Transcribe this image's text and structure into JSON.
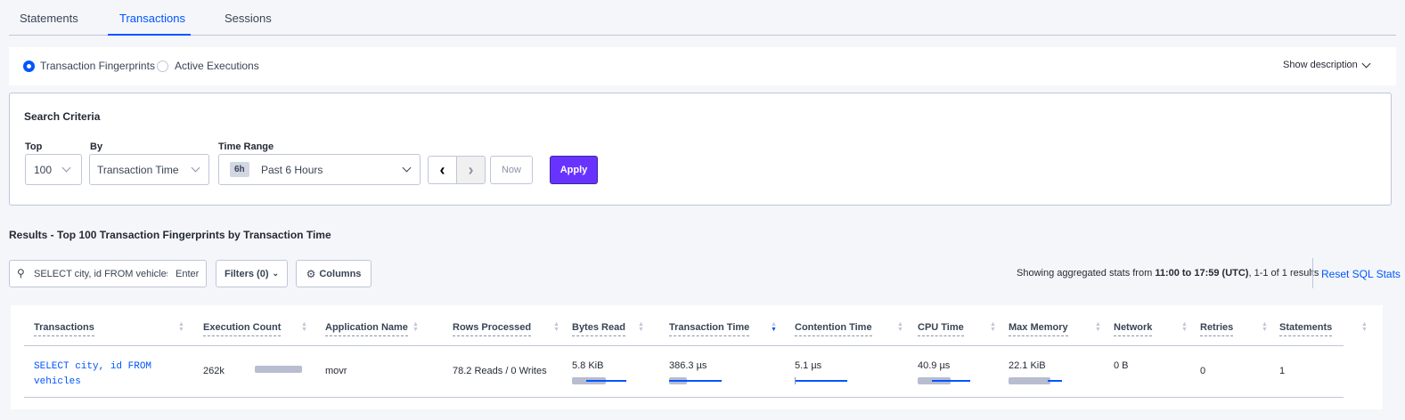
{
  "tabs": [
    {
      "label": "Statements"
    },
    {
      "label": "Transactions",
      "active": true
    },
    {
      "label": "Sessions"
    }
  ],
  "view_toggle": {
    "options": [
      "Transaction Fingerprints",
      "Active Executions"
    ],
    "selected": "Transaction Fingerprints",
    "show_description": "Show description"
  },
  "search_criteria": {
    "title": "Search Criteria",
    "top_label": "Top",
    "top_value": "100",
    "by_label": "By",
    "by_value": "Transaction Time",
    "time_range_label": "Time Range",
    "time_badge": "6h",
    "time_value": "Past 6 Hours",
    "now_label": "Now",
    "apply_label": "Apply"
  },
  "results": {
    "title": "Results - Top 100 Transaction Fingerprints by Transaction Time",
    "search_value": "SELECT city, id FROM vehicles W",
    "search_enter": "Enter",
    "filters_label": "Filters (0)",
    "columns_label": "Columns",
    "summary_prefix": "Showing aggregated stats from ",
    "summary_range": "11:00 to 17:59",
    "summary_tz": "(UTC)",
    "summary_suffix": ", 1-1 of 1 results",
    "reset_label": "Reset SQL Stats"
  },
  "table": {
    "columns": [
      "Transactions",
      "Execution Count",
      "Application Name",
      "Rows Processed",
      "Bytes Read",
      "Transaction Time",
      "Contention Time",
      "CPU Time",
      "Max Memory",
      "Network",
      "Retries",
      "Statements"
    ],
    "sorted_column": "Transaction Time",
    "sort_direction": "descending",
    "rows": [
      {
        "transaction_line1": "SELECT city, id FROM",
        "transaction_line2": "vehicles",
        "execution_count": "262k",
        "application_name": "movr",
        "rows_processed": "78.2 Reads / 0 Writes",
        "bytes_read": "5.8 KiB",
        "transaction_time": "386.3 µs",
        "contention_time": "5.1 µs",
        "cpu_time": "40.9 µs",
        "max_memory": "22.1 KiB",
        "network": "0 B",
        "retries": "0",
        "statements": "1",
        "bars": {
          "execution_count": {
            "mean": 1.0
          },
          "bytes_read": {
            "mean": 0.63,
            "dev_from": 0.27,
            "dev_to": 1.0
          },
          "transaction_time": {
            "mean": 0.34,
            "dev_from": 0.0,
            "dev_to": 1.0
          },
          "contention_time": {
            "mean": 0.0,
            "dev_from": 0.0,
            "dev_to": 1.0
          },
          "cpu_time": {
            "mean": 0.63,
            "dev_from": 0.27,
            "dev_to": 1.0
          },
          "max_memory": {
            "mean": 0.78,
            "dev_from": 0.73,
            "dev_to": 1.0
          }
        }
      }
    ]
  },
  "colors": {
    "accent": "#0055ff",
    "apply": "#6933ff",
    "background": "#f5f6fa"
  }
}
